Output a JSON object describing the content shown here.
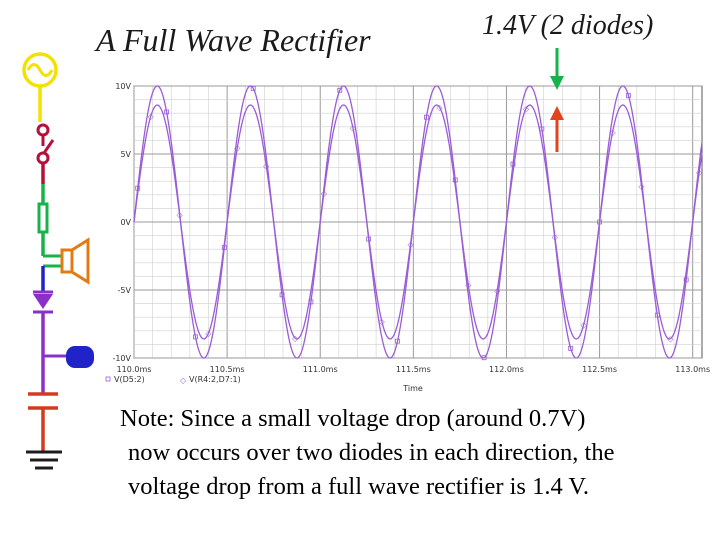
{
  "slide": {
    "title": "A Full Wave Rectifier",
    "annotation": "1.4V (2 diodes)",
    "note_lines": [
      "Note: Since a small voltage drop (around 0.7V)",
      "now occurs over two diodes in each direction, the",
      "voltage drop from a full wave rectifier is 1.4 V."
    ]
  },
  "colors": {
    "source": "#f2e200",
    "switch": "#b5103a",
    "green": "#19b24a",
    "speaker": "#e37b14",
    "diode": "#8b2fc9",
    "capacitor": "#d43b1e",
    "ground": "#1d1d1d",
    "wire_blue": "#1f23c8",
    "trace": "#9a5dd6",
    "arrow_green": "#19b24a",
    "arrow_red": "#e2421c"
  },
  "chart_data": {
    "type": "line",
    "x_ticks": [
      "110.0ms",
      "110.5ms",
      "111.0ms",
      "111.5ms",
      "112.0ms",
      "112.5ms",
      "113.0ms"
    ],
    "y_ticks": [
      "10V",
      "5V",
      "0V",
      "-5V",
      "-10V"
    ],
    "xlabel": "Time",
    "xlim": [
      110.0,
      113.05
    ],
    "ylim": [
      -10.0,
      10.0
    ],
    "legend": [
      "V(D5:2)",
      "V(R4:2,D7:1)"
    ],
    "series": [
      {
        "name": "V(D5:2)",
        "amplitude": 10.0,
        "frequency_hz": 2000,
        "phase_deg": 0
      },
      {
        "name": "V(R4:2,D7:1)",
        "amplitude": 8.6,
        "frequency_hz": 2000,
        "phase_deg": 0
      }
    ]
  }
}
